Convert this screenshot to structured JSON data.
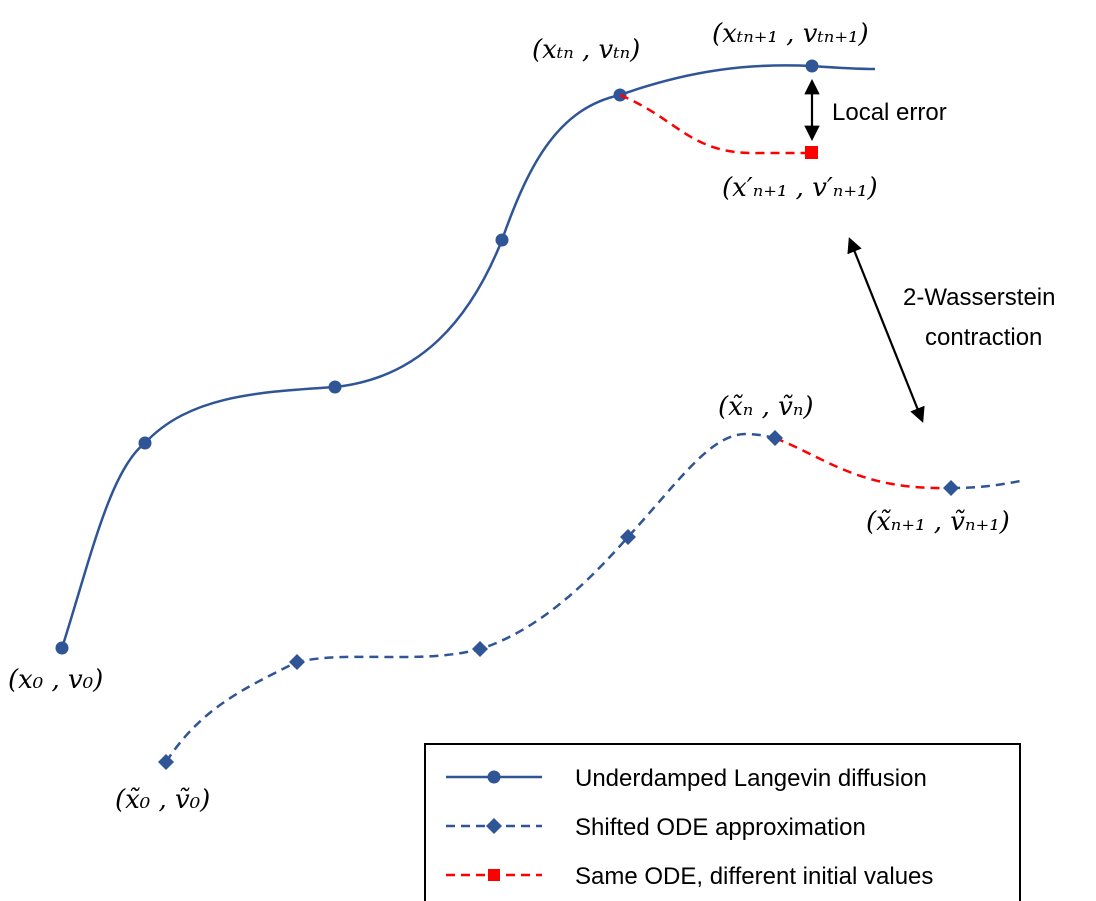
{
  "colors": {
    "langevin": "#2F5597",
    "shifted": "#2F5597",
    "same_ode": "#FF0000",
    "text": "#000000"
  },
  "labels": {
    "start_true": "(x₀ , v₀)",
    "point_tn": "(xₜₙ , vₜₙ)",
    "point_tn1": "(xₜₙ₊₁ , vₜₙ₊₁)",
    "point_prime": "(x′ₙ₊₁ , v′ₙ₊₁)",
    "start_tilde": "(x̃₀ , ṽ₀)",
    "point_tilde_n": "(x̃ₙ , ṽₙ)",
    "point_tilde_n1": "(x̃ₙ₊₁ , ṽₙ₊₁)"
  },
  "annotations": {
    "local_error": "Local error",
    "wasserstein_line1": "2-Wasserstein",
    "wasserstein_line2": "contraction"
  },
  "legend": {
    "items": [
      {
        "label": "Underdamped Langevin diffusion",
        "marker": "circle",
        "style": "solid",
        "color": "#2F5597"
      },
      {
        "label": "Shifted ODE approximation",
        "marker": "diamond",
        "style": "dashed",
        "color": "#2F5597"
      },
      {
        "label": "Same ODE, different initial values",
        "marker": "square",
        "style": "dashed",
        "color": "#FF0000"
      }
    ]
  }
}
